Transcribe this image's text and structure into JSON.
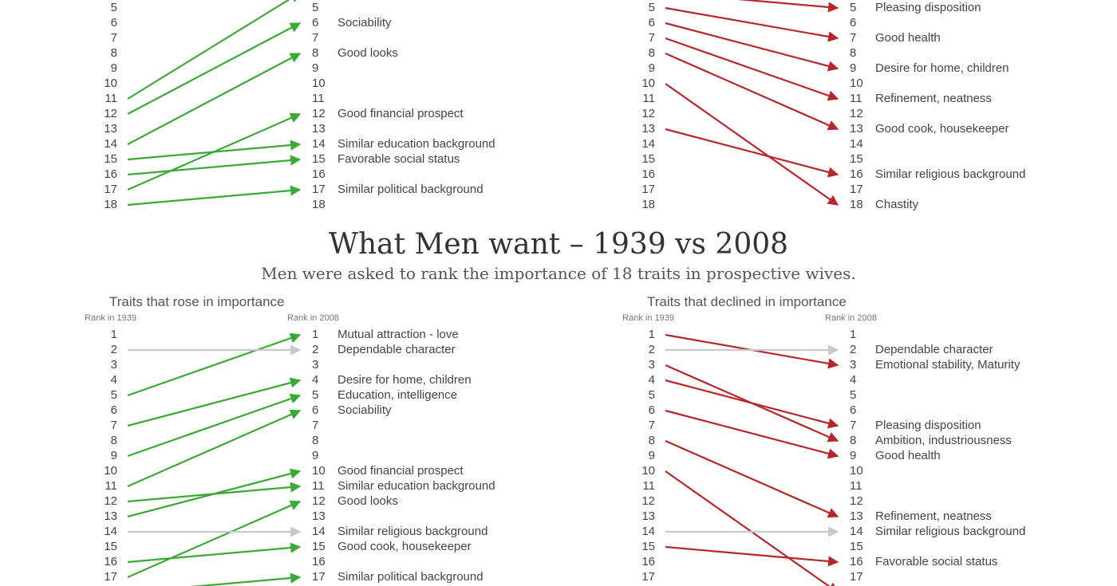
{
  "title": "What Men want – 1939 vs 2008",
  "subtitle": "Men were asked to rank the importance of 18 traits in prospective wives.",
  "colors": {
    "rose": "#3aaa35",
    "declined": "#b8262b",
    "unchanged": "#c8c8c8",
    "text": "#444444"
  },
  "chart_data": [
    {
      "type": "slope",
      "panel": "top-left",
      "visible_rank_range": [
        5,
        18
      ],
      "lines": [
        {
          "x": 11,
          "y": 4,
          "direction": "rose"
        },
        {
          "x": 12,
          "y": 6,
          "direction": "rose"
        },
        {
          "x": 14,
          "y": 8,
          "direction": "rose"
        },
        {
          "x": 17,
          "y": 12,
          "direction": "rose"
        },
        {
          "x": 15,
          "y": 14,
          "direction": "rose"
        },
        {
          "x": 16,
          "y": 15,
          "direction": "rose"
        },
        {
          "x": 18,
          "y": 17,
          "direction": "rose"
        }
      ],
      "labels": [
        {
          "rank": 6,
          "text": "Sociability"
        },
        {
          "rank": 8,
          "text": "Good looks"
        },
        {
          "rank": 12,
          "text": "Good financial prospect"
        },
        {
          "rank": 14,
          "text": "Similar education background"
        },
        {
          "rank": 15,
          "text": "Favorable social status"
        },
        {
          "rank": 17,
          "text": "Similar political background"
        }
      ]
    },
    {
      "type": "slope",
      "panel": "top-right",
      "visible_rank_range": [
        5,
        18
      ],
      "lines": [
        {
          "x": 4,
          "y": 5,
          "direction": "declined"
        },
        {
          "x": 5,
          "y": 7,
          "direction": "declined"
        },
        {
          "x": 6,
          "y": 9,
          "direction": "declined"
        },
        {
          "x": 7,
          "y": 11,
          "direction": "declined"
        },
        {
          "x": 8,
          "y": 13,
          "direction": "declined"
        },
        {
          "x": 10,
          "y": 18,
          "direction": "declined"
        },
        {
          "x": 13,
          "y": 16,
          "direction": "declined"
        }
      ],
      "labels": [
        {
          "rank": 5,
          "text": "Pleasing disposition"
        },
        {
          "rank": 7,
          "text": "Good health"
        },
        {
          "rank": 9,
          "text": "Desire for home, children"
        },
        {
          "rank": 11,
          "text": "Refinement, neatness"
        },
        {
          "rank": 13,
          "text": "Good cook, housekeeper"
        },
        {
          "rank": 16,
          "text": "Similar religious background"
        },
        {
          "rank": 18,
          "text": "Chastity"
        }
      ]
    },
    {
      "type": "slope",
      "panel": "bottom-left",
      "subtitle": "Traits that rose in importance",
      "xlabel": "Rank in 1939",
      "ylabel": "Rank in 2008",
      "visible_rank_range": [
        1,
        17
      ],
      "lines": [
        {
          "x": 5,
          "y": 1,
          "direction": "rose"
        },
        {
          "x": 2,
          "y": 2,
          "direction": "unchanged"
        },
        {
          "x": 7,
          "y": 4,
          "direction": "rose"
        },
        {
          "x": 9,
          "y": 5,
          "direction": "rose"
        },
        {
          "x": 11,
          "y": 6,
          "direction": "rose"
        },
        {
          "x": 13,
          "y": 10,
          "direction": "rose"
        },
        {
          "x": 12,
          "y": 11,
          "direction": "rose"
        },
        {
          "x": 17,
          "y": 12,
          "direction": "rose"
        },
        {
          "x": 14,
          "y": 14,
          "direction": "unchanged"
        },
        {
          "x": 16,
          "y": 15,
          "direction": "rose"
        },
        {
          "x": 18,
          "y": 17,
          "direction": "rose"
        }
      ],
      "labels": [
        {
          "rank": 1,
          "text": "Mutual attraction - love"
        },
        {
          "rank": 2,
          "text": "Dependable character"
        },
        {
          "rank": 4,
          "text": "Desire for home, children"
        },
        {
          "rank": 5,
          "text": "Education, intelligence"
        },
        {
          "rank": 6,
          "text": "Sociability"
        },
        {
          "rank": 10,
          "text": "Good financial prospect"
        },
        {
          "rank": 11,
          "text": "Similar education background"
        },
        {
          "rank": 12,
          "text": "Good looks"
        },
        {
          "rank": 14,
          "text": "Similar religious background"
        },
        {
          "rank": 15,
          "text": "Good cook, housekeeper"
        },
        {
          "rank": 17,
          "text": "Similar political background"
        }
      ]
    },
    {
      "type": "slope",
      "panel": "bottom-right",
      "subtitle": "Traits that declined in importance",
      "xlabel": "Rank in 1939",
      "ylabel": "Rank in 2008",
      "visible_rank_range": [
        1,
        17
      ],
      "lines": [
        {
          "x": 1,
          "y": 3,
          "direction": "declined"
        },
        {
          "x": 2,
          "y": 2,
          "direction": "unchanged"
        },
        {
          "x": 3,
          "y": 8,
          "direction": "declined"
        },
        {
          "x": 4,
          "y": 7,
          "direction": "declined"
        },
        {
          "x": 6,
          "y": 9,
          "direction": "declined"
        },
        {
          "x": 8,
          "y": 13,
          "direction": "declined"
        },
        {
          "x": 10,
          "y": 18,
          "direction": "declined"
        },
        {
          "x": 14,
          "y": 14,
          "direction": "unchanged"
        },
        {
          "x": 15,
          "y": 16,
          "direction": "declined"
        }
      ],
      "labels": [
        {
          "rank": 2,
          "text": "Dependable character"
        },
        {
          "rank": 3,
          "text": "Emotional stability, Maturity"
        },
        {
          "rank": 7,
          "text": "Pleasing disposition"
        },
        {
          "rank": 8,
          "text": "Ambition, industriousness"
        },
        {
          "rank": 9,
          "text": "Good health"
        },
        {
          "rank": 13,
          "text": "Refinement, neatness"
        },
        {
          "rank": 14,
          "text": "Similar religious background"
        },
        {
          "rank": 16,
          "text": "Favorable social status"
        }
      ]
    }
  ]
}
